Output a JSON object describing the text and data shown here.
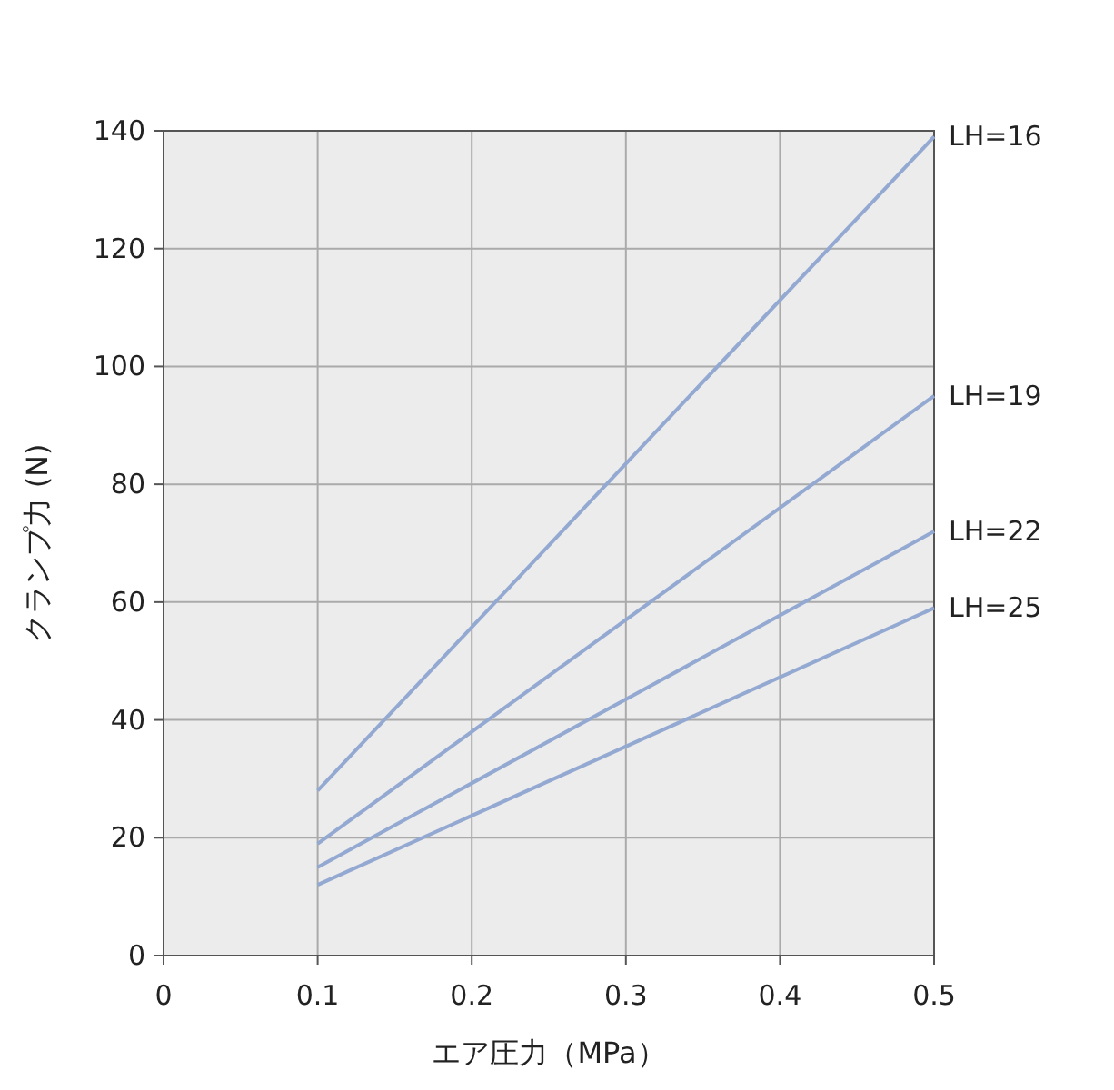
{
  "chart_data": {
    "type": "line",
    "xlabel": "エア圧力（MPa）",
    "ylabel": "クランプ力 (N)",
    "xlim": [
      0,
      0.5
    ],
    "ylim": [
      0,
      140
    ],
    "xticks": [
      0,
      0.1,
      0.2,
      0.3,
      0.4,
      0.5
    ],
    "yticks": [
      0,
      20,
      40,
      60,
      80,
      100,
      120,
      140
    ],
    "grid": true,
    "x": [
      0.1,
      0.5
    ],
    "series": [
      {
        "name": "LH=16",
        "color": "#93a9d2",
        "values": [
          28,
          139
        ]
      },
      {
        "name": "LH=19",
        "color": "#93a9d2",
        "values": [
          19,
          95
        ]
      },
      {
        "name": "LH=22",
        "color": "#93a9d2",
        "values": [
          15,
          72
        ]
      },
      {
        "name": "LH=25",
        "color": "#93a9d2",
        "values": [
          12,
          59
        ]
      }
    ]
  }
}
